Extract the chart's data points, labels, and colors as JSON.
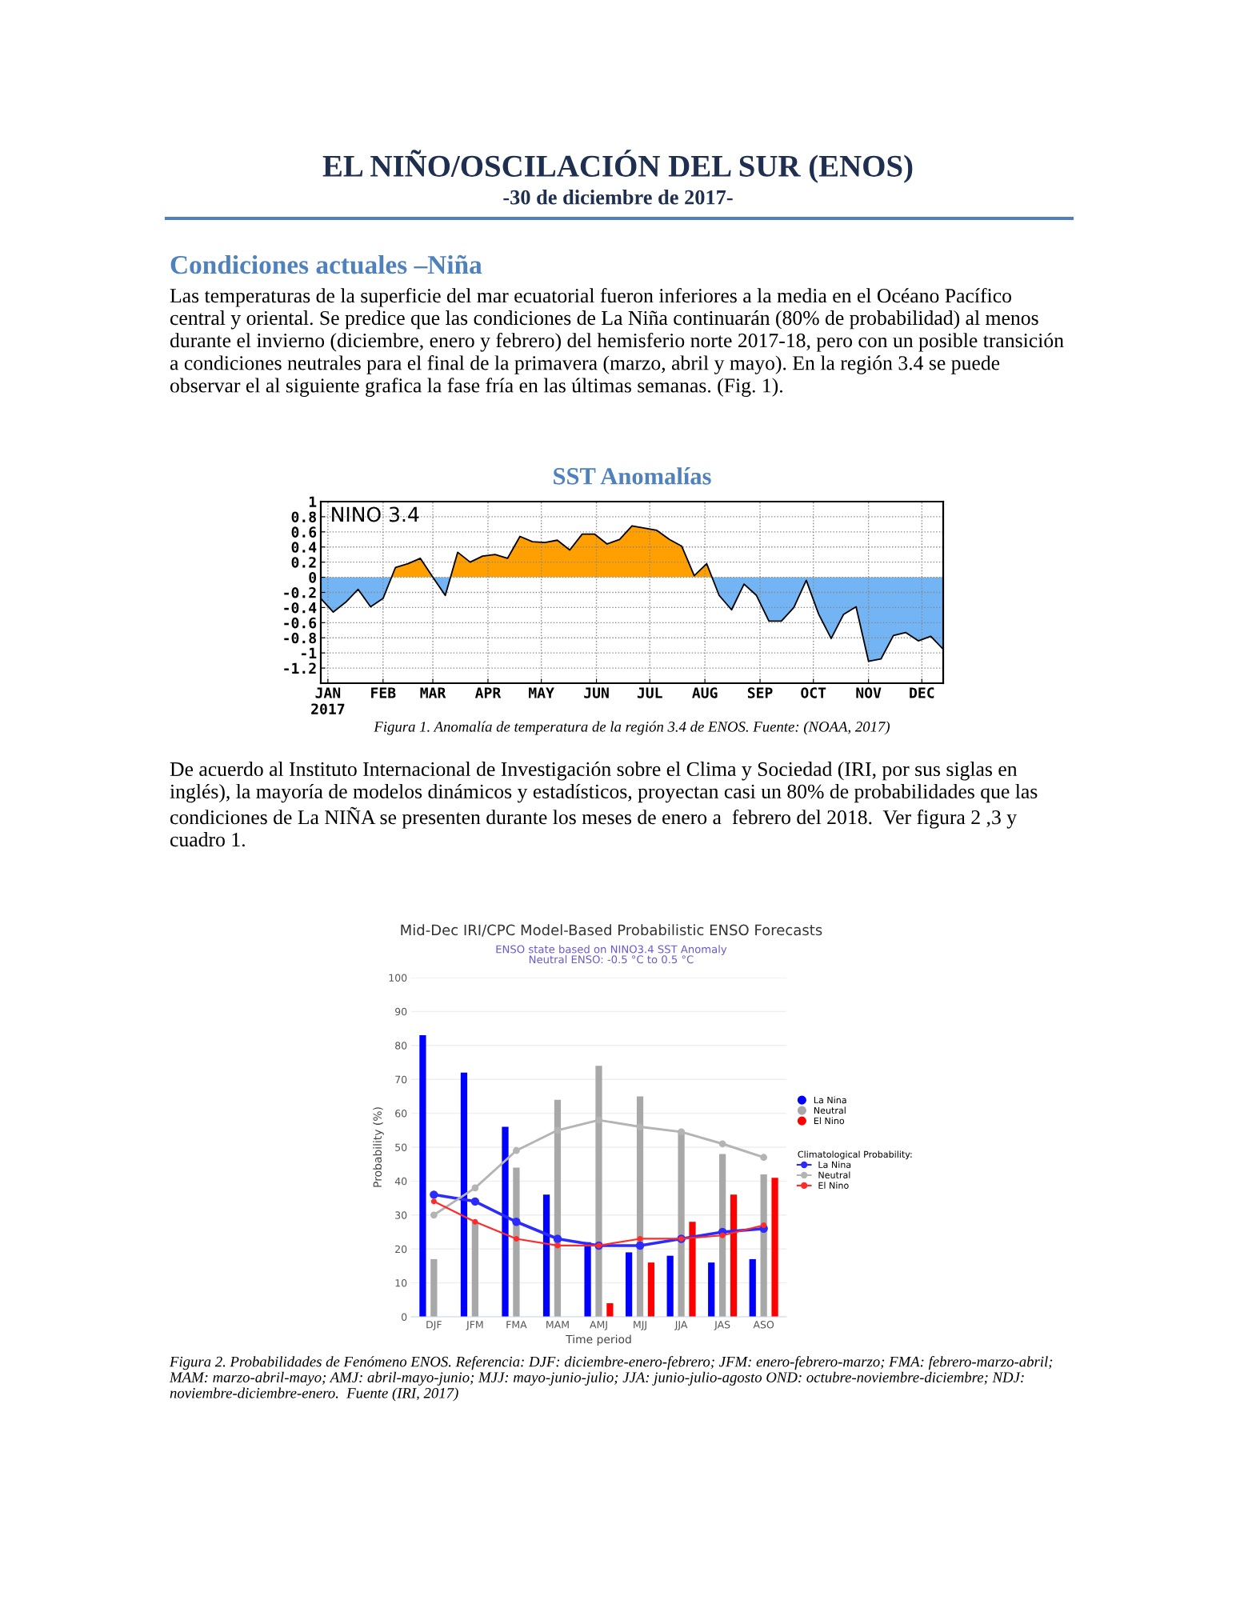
{
  "chart_data": [
    {
      "type": "other",
      "title": "EL NIÑO/OSCILACIÓN DEL SUR (ENOS)",
      "subtitle": "-30 de diciembre de 2017-",
      "annotations": [
        "Condiciones actuales –Niña",
        "Las temperaturas de la superficie del mar ecuatorial fueron inferiores a la media en el Océano Pacífico central y oriental. Se predice que las condiciones de La Niña continuarán (80% de probabilidad) al menos durante el invierno (diciembre, enero y febrero) del hemisferio norte 2017-18, pero con un posible transición a condiciones neutrales para el final de la primavera (marzo, abril y mayo). En la región 3.4 se puede observar el al siguiente grafica la fase fría en las últimas semanas. (Fig. 1)."
      ]
    },
    {
      "type": "area",
      "title": "SST Anomalías",
      "x": [
        "2016-12-28",
        "2017-01-04",
        "2017-01-11",
        "2017-01-18",
        "2017-01-25",
        "2017-02-01",
        "2017-02-08",
        "2017-02-15",
        "2017-02-22",
        "2017-03-01",
        "2017-03-08",
        "2017-03-15",
        "2017-03-22",
        "2017-03-29",
        "2017-04-05",
        "2017-04-12",
        "2017-04-19",
        "2017-04-26",
        "2017-05-03",
        "2017-05-10",
        "2017-05-17",
        "2017-05-24",
        "2017-05-31",
        "2017-06-07",
        "2017-06-14",
        "2017-06-21",
        "2017-06-28",
        "2017-07-05",
        "2017-07-12",
        "2017-07-19",
        "2017-07-26",
        "2017-08-02",
        "2017-08-09",
        "2017-08-16",
        "2017-08-23",
        "2017-08-30",
        "2017-09-06",
        "2017-09-13",
        "2017-09-20",
        "2017-09-27",
        "2017-10-04",
        "2017-10-11",
        "2017-10-18",
        "2017-10-25",
        "2017-11-01",
        "2017-11-08",
        "2017-11-15",
        "2017-11-22",
        "2017-11-29",
        "2017-12-06",
        "2017-12-13"
      ],
      "series": [
        {
          "color": "#000000",
          "values": [
            -0.28,
            -0.46,
            -0.33,
            -0.16,
            -0.39,
            -0.28,
            0.13,
            0.18,
            0.25,
            0.0,
            -0.24,
            0.33,
            0.2,
            0.28,
            0.3,
            0.25,
            0.54,
            0.47,
            0.46,
            0.49,
            0.36,
            0.57,
            0.57,
            0.44,
            0.5,
            0.68,
            0.65,
            0.62,
            0.5,
            0.41,
            0.02,
            0.18,
            -0.24,
            -0.43,
            -0.09,
            -0.24,
            -0.58,
            -0.58,
            -0.4,
            -0.04,
            -0.49,
            -0.81,
            -0.49,
            -0.39,
            -1.11,
            -1.08,
            -0.77,
            -0.73,
            -0.84,
            -0.78,
            -0.95
          ]
        }
      ],
      "colors": [
        "#ffa000",
        "#72b4f4"
      ],
      "xlim": [
        "2016-12-28",
        "2017-12-13"
      ],
      "xticks": [
        {
          "value": "2017-01-01",
          "label": "JAN\n2017"
        },
        {
          "value": "2017-02-01",
          "label": "FEB"
        },
        {
          "value": "2017-03-01",
          "label": "MAR"
        },
        {
          "value": "2017-04-01",
          "label": "APR"
        },
        {
          "value": "2017-05-01",
          "label": "MAY"
        },
        {
          "value": "2017-06-01",
          "label": "JUN"
        },
        {
          "value": "2017-07-01",
          "label": "JUL"
        },
        {
          "value": "2017-08-01",
          "label": "AUG"
        },
        {
          "value": "2017-09-01",
          "label": "SEP"
        },
        {
          "value": "2017-10-01",
          "label": "OCT"
        },
        {
          "value": "2017-11-01",
          "label": "NOV"
        },
        {
          "value": "2017-12-01",
          "label": "DEC"
        }
      ],
      "ylim": [
        -1.4,
        1
      ],
      "yticks": [
        1,
        0.8,
        0.6,
        0.4,
        0.2,
        0,
        -0.2,
        -0.4,
        -0.6,
        -0.8,
        -1,
        -1.2
      ],
      "grid": true,
      "line_style": "solid",
      "annotations": [
        "NINO 3.4",
        "Figura 1. Anomalía de temperatura de la región 3.4 de ENOS. Fuente: (NOAA, 2017)"
      ]
    },
    {
      "type": "other",
      "annotations": [
        "De acuerdo al Instituto Internacional de Investigación sobre el Clima y Sociedad (IRI, por sus siglas en inglés), la mayoría de modelos dinámicos y estadísticos, proyectan casi un 80% de probabilidades que las condiciones de La NIÑA se presenten durante los meses de enero a  febrero del 2018.  Ver figura 2 ,3 y cuadro 1."
      ]
    },
    {
      "type": "bar",
      "title": "Mid-Dec IRI/CPC Model-Based Probabilistic ENSO Forecasts",
      "subtitle": "ENSO state based on NINO3.4 SST Anomaly\nNeutral ENSO: -0.5 °C to 0.5 °C",
      "xlabel": "Time period",
      "ylabel": "Probability (%)",
      "categories": [
        "DJF",
        "JFM",
        "FMA",
        "MAM",
        "AMJ",
        "MJJ",
        "JJA",
        "JAS",
        "ASO"
      ],
      "series": [
        {
          "name": "La Nina",
          "color": "#0000ff",
          "values": [
            83,
            72,
            56,
            36,
            22,
            19,
            18,
            16,
            17
          ]
        },
        {
          "name": "Neutral",
          "color": "#a8a8a8",
          "values": [
            17,
            28,
            44,
            64,
            74,
            65,
            55,
            48,
            42
          ]
        },
        {
          "name": "El Nino",
          "color": "#ff0000",
          "values": [
            null,
            null,
            null,
            null,
            4,
            16,
            28,
            36,
            41
          ]
        },
        {
          "type": "line",
          "name": "La Nina",
          "color": "#2b2bff",
          "marker": "circle",
          "values": [
            36,
            34,
            28,
            23,
            21,
            21,
            23,
            25,
            26
          ]
        },
        {
          "type": "line",
          "name": "Neutral",
          "color": "#b4b4b4",
          "marker": "circle",
          "values": [
            30,
            38,
            49,
            55,
            58,
            56,
            54.5,
            51,
            47
          ]
        },
        {
          "type": "line",
          "name": "El Nino",
          "color": "#ff2b2b",
          "marker": "circle",
          "values": [
            34,
            28,
            23,
            21,
            21,
            23,
            23,
            24,
            27
          ]
        }
      ],
      "legend_title": "Climatological Probability:",
      "ylim": [
        0,
        100
      ],
      "yticks": [
        0,
        10,
        20,
        30,
        40,
        50,
        60,
        70,
        80,
        90,
        100
      ],
      "grid": "y",
      "legend": "right",
      "annotations": [
        "Figura 2. Probabilidades de Fenómeno ENOS. Referencia: DJF: diciembre-enero-febrero; JFM: enero-febrero-marzo; FMA: febrero-marzo-abril; MAM: marzo-abril-mayo; AMJ: abril-mayo-junio; MJJ: mayo-junio-julio; JJA: junio-julio-agosto OND: octubre-noviembre-diciembre; NDJ: noviembre-diciembre-enero.  Fuente (IRI, 2017)"
      ]
    }
  ]
}
